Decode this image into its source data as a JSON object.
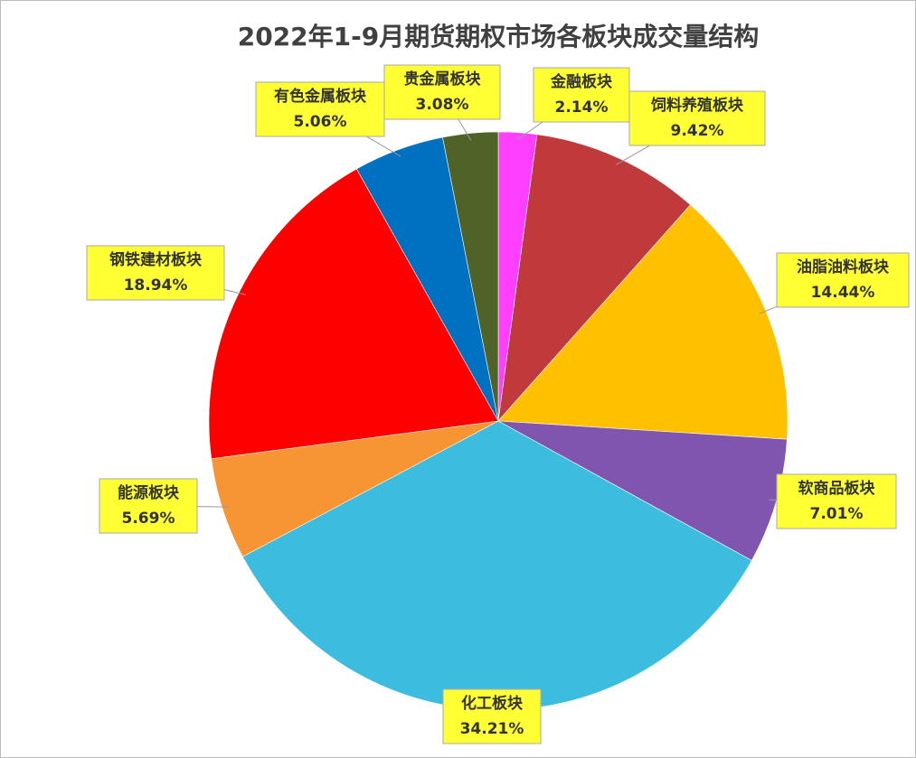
{
  "chart_data": {
    "type": "pie",
    "title": "2022年1-9月期货期权市场各板块成交量结构",
    "categories": [
      "金融板块",
      "饲料养殖板块",
      "油脂油料板块",
      "软商品板块",
      "化工板块",
      "能源板块",
      "钢铁建材板块",
      "有色金属板块",
      "贵金属板块"
    ],
    "values": [
      2.14,
      9.42,
      14.44,
      7.01,
      34.21,
      5.69,
      18.94,
      5.06,
      3.08
    ],
    "value_labels": [
      "2.14%",
      "9.42%",
      "14.44%",
      "7.01%",
      "34.21%",
      "5.69%",
      "18.94%",
      "5.06%",
      "3.08%"
    ],
    "colors": [
      "#ff3fff",
      "#c0393b",
      "#ffc000",
      "#7f55b0",
      "#3cbde0",
      "#f79433",
      "#ff0000",
      "#0070c0",
      "#4f6228"
    ]
  }
}
